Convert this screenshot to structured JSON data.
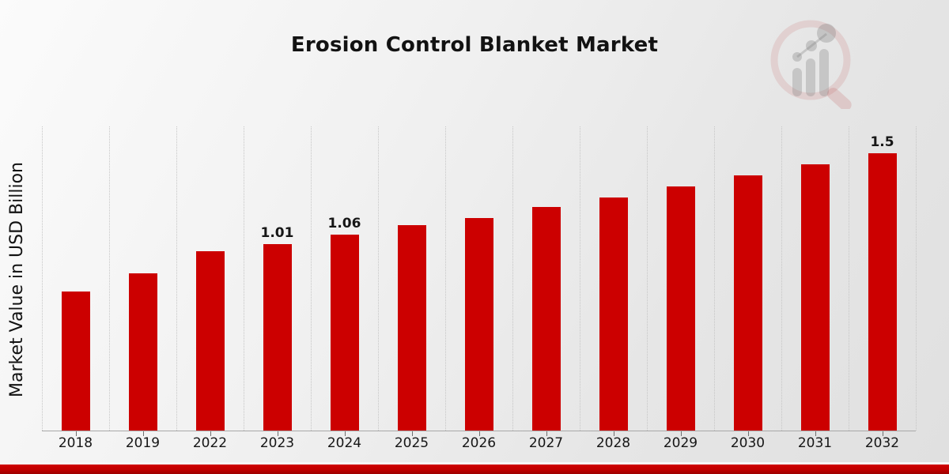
{
  "chart_data": {
    "type": "bar",
    "title": "Erosion Control Blanket Market",
    "xlabel": "",
    "ylabel": "Market Value in USD Billion",
    "categories": [
      "2018",
      "2019",
      "2022",
      "2023",
      "2024",
      "2025",
      "2026",
      "2027",
      "2028",
      "2029",
      "2030",
      "2031",
      "2032"
    ],
    "values": [
      0.75,
      0.85,
      0.97,
      1.01,
      1.06,
      1.11,
      1.15,
      1.21,
      1.26,
      1.32,
      1.38,
      1.44,
      1.5
    ],
    "bar_value_labels": [
      "",
      "",
      "",
      "1.01",
      "1.06",
      "",
      "",
      "",
      "",
      "",
      "",
      "",
      "1.5"
    ],
    "ylim": [
      0,
      1.65
    ],
    "grid": "vertical-dotted",
    "legend": "none",
    "bar_color": "#cc0000",
    "text_color": "#161616"
  },
  "footer": {
    "accent_color": "#c00000"
  },
  "icons": {
    "watermark": "magnifier-bar-chart-watermark-icon"
  }
}
